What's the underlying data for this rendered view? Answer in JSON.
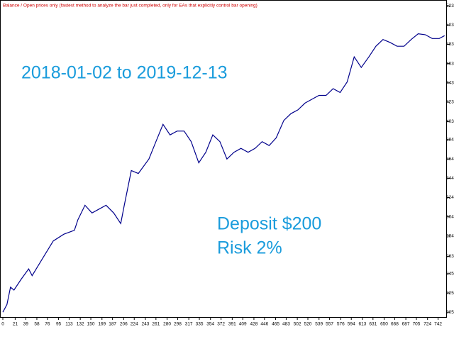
{
  "chart_data": {
    "type": "line",
    "title": "Balance / Open prices only (fastest method to analyze the bar just completed, only for EAs that explicitly control bar opening)",
    "annotations": [
      "2018-01-02 to 2019-12-13",
      "Deposit $200",
      "Risk 2%"
    ],
    "x": [
      0,
      7,
      13,
      19,
      31,
      44,
      50,
      68,
      86,
      104,
      122,
      128,
      140,
      152,
      164,
      176,
      189,
      201,
      207,
      219,
      231,
      249,
      261,
      273,
      285,
      297,
      309,
      321,
      334,
      346,
      358,
      370,
      382,
      394,
      406,
      418,
      430,
      442,
      454,
      466,
      479,
      491,
      503,
      515,
      527,
      539,
      551,
      563,
      575,
      587,
      599,
      611,
      624,
      636,
      648,
      660,
      672,
      684,
      696,
      708,
      720,
      732,
      744,
      753
    ],
    "series": [
      {
        "name": "Balance",
        "color": "#00008b",
        "values": [
          205,
          213,
          231,
          228,
          239,
          250,
          243,
          261,
          279,
          286,
          290,
          301,
          316,
          308,
          312,
          316,
          308,
          297,
          316,
          352,
          349,
          364,
          382,
          400,
          389,
          393,
          393,
          382,
          360,
          371,
          389,
          382,
          364,
          371,
          375,
          371,
          375,
          382,
          378,
          386,
          404,
          411,
          415,
          422,
          426,
          430,
          430,
          437,
          433,
          444,
          470,
          459,
          470,
          481,
          488,
          485,
          481,
          481,
          488,
          494,
          493,
          489,
          489,
          492
        ]
      }
    ],
    "xlim": [
      0,
      757
    ],
    "ylim": [
      200,
      529
    ],
    "xticks": [
      0,
      21,
      39,
      58,
      76,
      95,
      113,
      132,
      150,
      169,
      187,
      206,
      224,
      243,
      261,
      280,
      298,
      317,
      335,
      354,
      372,
      391,
      409,
      428,
      446,
      465,
      483,
      502,
      520,
      539,
      557,
      576,
      594,
      613,
      631,
      650,
      668,
      687,
      705,
      724,
      742
    ],
    "yticks": [
      205,
      225,
      245,
      263,
      284,
      304,
      324,
      344,
      364,
      384,
      403,
      423,
      443,
      463,
      483,
      503,
      523
    ],
    "grid": false
  }
}
